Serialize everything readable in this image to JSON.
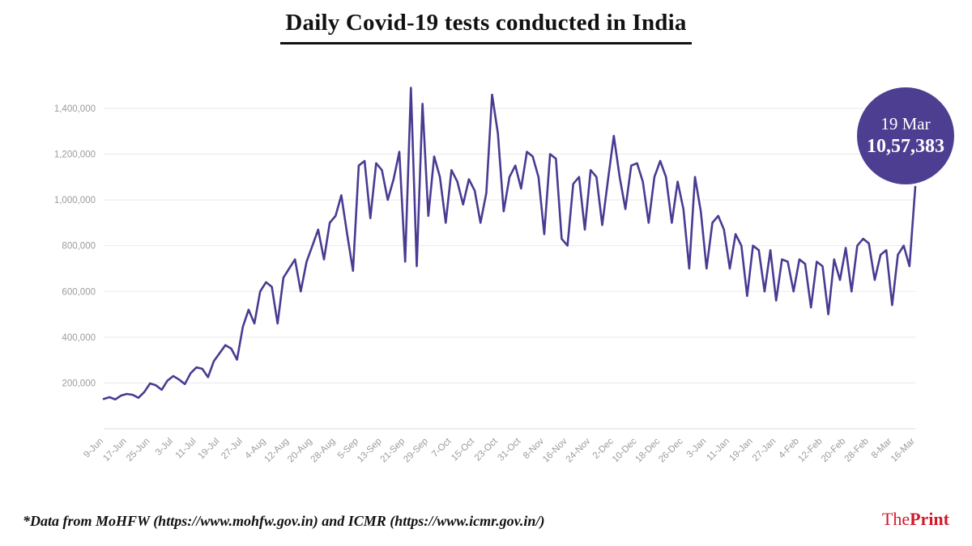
{
  "title": "Daily Covid-19 tests conducted in India",
  "badge": {
    "date": "19 Mar",
    "value": "10,57,383",
    "bg_color": "#4d3e91",
    "text_color": "#ffffff"
  },
  "footer": {
    "source": "*Data from MoHFW (https://www.mohfw.gov.in) and ICMR (https://www.icmr.gov.in/)",
    "logo_the": "The",
    "logo_print": "Print",
    "logo_color": "#d11a2a"
  },
  "chart_data": {
    "type": "line",
    "title": "Daily Covid-19 tests conducted in India",
    "xlabel": "",
    "ylabel": "",
    "line_color": "#4b3a92",
    "grid": "horizontal",
    "grid_color": "#e9e9e9",
    "axis_label_color": "#9b9b9b",
    "ylim": [
      0,
      1520000
    ],
    "y_ticks": [
      200000,
      400000,
      600000,
      800000,
      1000000,
      1200000,
      1400000
    ],
    "y_tick_labels": [
      "200,000",
      "400,000",
      "600,000",
      "800,000",
      "1,000,000",
      "1,200,000",
      "1,400,000"
    ],
    "x_tick_labels": [
      "9-Jun",
      "17-Jun",
      "25-Jun",
      "3-Jul",
      "11-Jul",
      "19-Jul",
      "27-Jul",
      "4-Aug",
      "12-Aug",
      "20-Aug",
      "28-Aug",
      "5-Sep",
      "13-Sep",
      "21-Sep",
      "29-Sep",
      "7-Oct",
      "15-Oct",
      "23-Oct",
      "31-Oct",
      "8-Nov",
      "16-Nov",
      "24-Nov",
      "2-Dec",
      "10-Dec",
      "18-Dec",
      "26-Dec",
      "3-Jan",
      "11-Jan",
      "19-Jan",
      "27-Jan",
      "4-Feb",
      "12-Feb",
      "20-Feb",
      "28-Feb",
      "8-Mar",
      "16-Mar"
    ],
    "x_tick_day_step": 8,
    "sample_day_step": 2,
    "x_start": "9-Jun",
    "x_end": "16-Mar",
    "latest_point": {
      "date": "19 Mar",
      "value": 1057383
    },
    "values": [
      130000,
      138000,
      128000,
      145000,
      152000,
      148000,
      135000,
      160000,
      198000,
      190000,
      170000,
      210000,
      230000,
      215000,
      195000,
      243000,
      268000,
      262000,
      225000,
      295000,
      330000,
      365000,
      350000,
      302000,
      445000,
      520000,
      460000,
      600000,
      640000,
      620000,
      460000,
      660000,
      700000,
      740000,
      600000,
      730000,
      800000,
      870000,
      740000,
      900000,
      930000,
      1020000,
      850000,
      690000,
      1150000,
      1170000,
      920000,
      1160000,
      1130000,
      1000000,
      1090000,
      1210000,
      730000,
      1490000,
      710000,
      1420000,
      930000,
      1190000,
      1100000,
      900000,
      1130000,
      1080000,
      980000,
      1090000,
      1040000,
      900000,
      1030000,
      1460000,
      1290000,
      950000,
      1100000,
      1150000,
      1050000,
      1210000,
      1190000,
      1100000,
      850000,
      1200000,
      1180000,
      830000,
      800000,
      1070000,
      1100000,
      870000,
      1130000,
      1100000,
      890000,
      1090000,
      1280000,
      1100000,
      960000,
      1150000,
      1160000,
      1080000,
      900000,
      1100000,
      1170000,
      1100000,
      900000,
      1080000,
      960000,
      700000,
      1100000,
      950000,
      700000,
      900000,
      930000,
      870000,
      700000,
      850000,
      800000,
      580000,
      800000,
      780000,
      600000,
      780000,
      560000,
      740000,
      730000,
      600000,
      740000,
      720000,
      530000,
      730000,
      710000,
      500000,
      740000,
      650000,
      790000,
      600000,
      800000,
      830000,
      810000,
      650000,
      760000,
      780000,
      540000,
      760000,
      800000,
      710000,
      1057383
    ]
  }
}
